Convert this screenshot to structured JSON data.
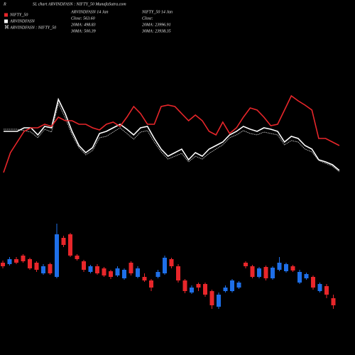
{
  "chart_data": [
    {
      "type": "line",
      "title_initial": "R",
      "title": "SL chart ARVINDFASN : NIFTY_50 MunafaSutra.com",
      "info": [
        {
          "lines": [
            "ARVINDFASN 14 Jan",
            "Close: 563.60",
            "20MA: 498.83",
            "30MA: 500.39"
          ]
        },
        {
          "lines": [
            "NIFTY_50 14 Jan",
            "Close:",
            "20MA: 23996.91",
            "30MA: 23938.35"
          ]
        }
      ],
      "ylim": [
        0,
        120
      ],
      "series": [
        {
          "name": "NIFTY_50",
          "color": "#e8262a",
          "style": "solid",
          "values": [
            7,
            35,
            50,
            65,
            70,
            70,
            75,
            72,
            85,
            80,
            80,
            75,
            75,
            70,
            67,
            75,
            78,
            72,
            85,
            100,
            90,
            75,
            75,
            100,
            102,
            100,
            90,
            80,
            88,
            80,
            65,
            60,
            78,
            62,
            70,
            85,
            98,
            95,
            85,
            73,
            75,
            95,
            115,
            108,
            102,
            95,
            55,
            55,
            50,
            45
          ]
        },
        {
          "name": "ARVINDFASN",
          "color": "#ffffff",
          "style": "solid",
          "values": [
            65,
            65,
            65,
            70,
            70,
            60,
            72,
            70,
            110,
            90,
            65,
            45,
            35,
            42,
            62,
            65,
            70,
            75,
            68,
            60,
            70,
            72,
            55,
            40,
            30,
            35,
            40,
            25,
            35,
            30,
            40,
            45,
            50,
            60,
            65,
            72,
            68,
            65,
            70,
            68,
            65,
            50,
            58,
            55,
            45,
            40,
            25,
            22,
            18,
            10
          ]
        },
        {
          "name": "ARVINDFASN : NIFTY_50",
          "color": "#bbbbbb",
          "style": "dotted",
          "values": [
            68,
            68,
            68,
            66,
            64,
            56,
            68,
            64,
            104,
            84,
            60,
            42,
            32,
            38,
            56,
            58,
            64,
            70,
            62,
            54,
            64,
            66,
            50,
            36,
            26,
            30,
            34,
            22,
            30,
            26,
            34,
            40,
            46,
            56,
            60,
            66,
            62,
            60,
            64,
            62,
            60,
            46,
            52,
            50,
            40,
            36,
            24,
            20,
            16,
            8
          ]
        }
      ]
    },
    {
      "type": "candlestick",
      "ylim": [
        0,
        130
      ],
      "up_color": "#1e6fe8",
      "down_color": "#e8262a",
      "open": [
        70,
        68,
        75,
        80,
        75,
        70,
        55,
        68,
        50,
        105,
        110,
        80,
        72,
        57,
        65,
        62,
        58,
        52,
        48,
        70,
        50,
        50,
        45,
        50,
        55,
        75,
        65,
        45,
        28,
        40,
        40,
        30,
        8,
        30,
        30,
        35,
        70,
        65,
        50,
        64,
        48,
        60,
        58,
        65,
        42,
        48,
        50,
        30,
        37,
        20
      ],
      "high": [
        73,
        78,
        78,
        82,
        77,
        72,
        68,
        70,
        125,
        108,
        112,
        82,
        74,
        67,
        68,
        64,
        60,
        65,
        62,
        72,
        65,
        55,
        47,
        60,
        80,
        77,
        68,
        47,
        38,
        42,
        42,
        32,
        28,
        38,
        47,
        44,
        72,
        67,
        64,
        66,
        65,
        78,
        70,
        67,
        60,
        56,
        52,
        42,
        40,
        25
      ],
      "low": [
        62,
        66,
        68,
        70,
        60,
        57,
        53,
        53,
        48,
        92,
        78,
        73,
        57,
        55,
        53,
        50,
        47,
        50,
        46,
        52,
        48,
        43,
        30,
        48,
        53,
        62,
        42,
        27,
        26,
        30,
        22,
        5,
        5,
        28,
        28,
        33,
        62,
        48,
        48,
        45,
        46,
        58,
        56,
        57,
        40,
        46,
        32,
        28,
        20,
        5
      ],
      "close": [
        65,
        75,
        70,
        72,
        62,
        60,
        65,
        55,
        110,
        95,
        80,
        75,
        60,
        65,
        55,
        52,
        50,
        62,
        60,
        55,
        62,
        45,
        35,
        57,
        77,
        65,
        45,
        30,
        35,
        35,
        25,
        10,
        25,
        35,
        45,
        42,
        65,
        50,
        62,
        48,
        63,
        70,
        68,
        59,
        57,
        54,
        35,
        40,
        25,
        10
      ]
    }
  ]
}
